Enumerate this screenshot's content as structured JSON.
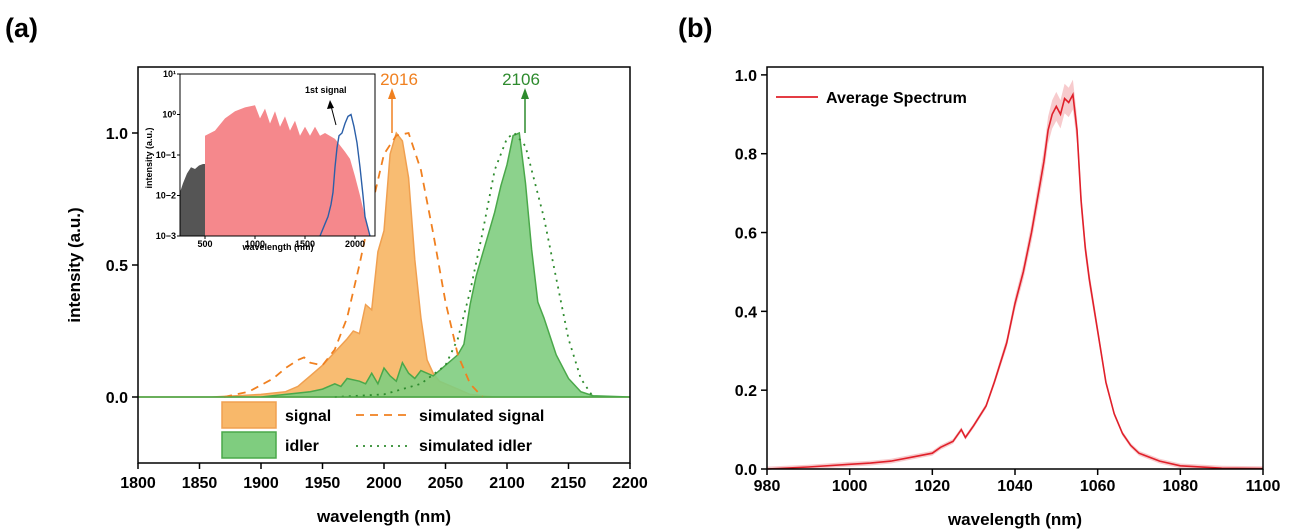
{
  "chart_data": [
    {
      "panel": "(a)",
      "type": "area",
      "xlabel": "wavelength (nm)",
      "ylabel": "intensity (a.u.)",
      "xlim": [
        1800,
        2200
      ],
      "ylim": [
        -0.25,
        1.25
      ],
      "xticks": [
        "1800",
        "1850",
        "1900",
        "1950",
        "2000",
        "2050",
        "2100",
        "2150",
        "2200"
      ],
      "yticks": [
        "0.0",
        "0.5",
        "1.0"
      ],
      "legend_position": "bottom",
      "legend": [
        "signal",
        "simulated signal",
        "idler",
        "simulated idler"
      ],
      "annotations": [
        {
          "text": "2016",
          "x": 2016,
          "color": "#f08020"
        },
        {
          "text": "2106",
          "x": 2106,
          "color": "#2e8b2e"
        }
      ],
      "series": [
        {
          "name": "signal",
          "style": "filled-area",
          "color": "#f8b86a",
          "x": [
            1800,
            1860,
            1880,
            1900,
            1920,
            1930,
            1940,
            1950,
            1960,
            1970,
            1975,
            1980,
            1985,
            1990,
            1995,
            2000,
            2005,
            2010,
            2015,
            2020,
            2025,
            2030,
            2035,
            2040,
            2045,
            2050,
            2055,
            2060,
            2070,
            2080,
            2090,
            2100,
            2110,
            2120,
            2200
          ],
          "y": [
            0,
            0,
            0.005,
            0.01,
            0.02,
            0.04,
            0.08,
            0.12,
            0.17,
            0.22,
            0.25,
            0.24,
            0.35,
            0.33,
            0.55,
            0.63,
            0.92,
            1.0,
            0.97,
            0.83,
            0.52,
            0.3,
            0.14,
            0.09,
            0.06,
            0.05,
            0.04,
            0.03,
            0.01,
            0.005,
            0,
            0,
            0,
            0,
            0
          ]
        },
        {
          "name": "idler",
          "style": "filled-area",
          "color": "#7fcd7f",
          "x": [
            1800,
            1900,
            1920,
            1940,
            1950,
            1960,
            1965,
            1970,
            1980,
            1985,
            1990,
            1995,
            2000,
            2005,
            2010,
            2015,
            2020,
            2025,
            2030,
            2040,
            2050,
            2060,
            2065,
            2070,
            2075,
            2080,
            2085,
            2090,
            2095,
            2100,
            2105,
            2110,
            2115,
            2120,
            2125,
            2130,
            2140,
            2150,
            2160,
            2170,
            2200
          ],
          "y": [
            0,
            0,
            0.01,
            0.02,
            0.03,
            0.05,
            0.04,
            0.07,
            0.06,
            0.05,
            0.09,
            0.05,
            0.11,
            0.08,
            0.06,
            0.13,
            0.09,
            0.07,
            0.1,
            0.08,
            0.12,
            0.16,
            0.2,
            0.35,
            0.46,
            0.54,
            0.62,
            0.7,
            0.8,
            0.88,
            0.99,
            1.0,
            0.81,
            0.56,
            0.36,
            0.3,
            0.16,
            0.07,
            0.02,
            0.005,
            0
          ]
        },
        {
          "name": "simulated signal",
          "style": "dashed",
          "color": "#f08020",
          "x": [
            1870,
            1890,
            1910,
            1920,
            1930,
            1935,
            1940,
            1950,
            1960,
            1970,
            1980,
            1990,
            2000,
            2010,
            2020,
            2030,
            2040,
            2050,
            2060,
            2070,
            2080
          ],
          "y": [
            0,
            0.02,
            0.07,
            0.11,
            0.14,
            0.15,
            0.13,
            0.12,
            0.18,
            0.3,
            0.5,
            0.72,
            0.92,
            0.99,
            1.0,
            0.86,
            0.62,
            0.36,
            0.16,
            0.05,
            0
          ]
        },
        {
          "name": "simulated idler",
          "style": "dotted",
          "color": "#2e8b2e",
          "x": [
            1960,
            2000,
            2030,
            2050,
            2060,
            2070,
            2080,
            2090,
            2100,
            2106,
            2115,
            2130,
            2140,
            2150,
            2160,
            2170
          ],
          "y": [
            0,
            0.01,
            0.05,
            0.12,
            0.22,
            0.4,
            0.62,
            0.86,
            0.98,
            1.0,
            0.95,
            0.68,
            0.45,
            0.22,
            0.07,
            0
          ]
        }
      ],
      "inset": {
        "type": "area",
        "xlabel": "wavelength (nm)",
        "ylabel": "intensity (a.u.)",
        "scale": "log",
        "xlim": [
          250,
          2200
        ],
        "ylim": [
          0.001,
          10
        ],
        "xticks": [
          "500",
          "1000",
          "1500",
          "2000"
        ],
        "yticks": [
          "10−3",
          "10−2",
          "10−1",
          "10⁰",
          "10¹"
        ],
        "annotation": "1st signal",
        "series": [
          {
            "name": "gray",
            "style": "filled-area",
            "color": "#555555",
            "x": [
              250,
              280,
              320,
              360,
              400,
              440,
              480,
              500
            ],
            "y": [
              0.012,
              0.02,
              0.035,
              0.05,
              0.045,
              0.055,
              0.06,
              0.06
            ]
          },
          {
            "name": "pink",
            "style": "filled-area",
            "color": "#f5888c",
            "x": [
              500,
              600,
              700,
              800,
              900,
              1000,
              1050,
              1100,
              1150,
              1200,
              1250,
              1300,
              1350,
              1400,
              1450,
              1500,
              1550,
              1600,
              1650,
              1700,
              1800,
              1900,
              1950,
              2000,
              2050,
              2100,
              2150
            ],
            "y": [
              0.3,
              0.4,
              0.8,
              1.2,
              1.5,
              1.7,
              0.8,
              1.4,
              0.6,
              1.2,
              0.5,
              0.9,
              0.4,
              0.7,
              0.3,
              0.5,
              0.3,
              0.5,
              0.3,
              0.35,
              0.25,
              0.12,
              0.08,
              0.03,
              0.01,
              0.003,
              0.001
            ]
          },
          {
            "name": "1st signal",
            "style": "line",
            "color": "#2b5fa8",
            "x": [
              1650,
              1700,
              1730,
              1760,
              1780,
              1800,
              1820,
              1840,
              1870,
              1900,
              1930,
              1960,
              1990,
              2020,
              2050,
              2080,
              2100,
              2150
            ],
            "y": [
              0.001,
              0.002,
              0.003,
              0.006,
              0.012,
              0.05,
              0.15,
              0.3,
              0.35,
              0.6,
              0.9,
              1.0,
              0.5,
              0.2,
              0.05,
              0.01,
              0.003,
              0.001
            ]
          }
        ]
      }
    },
    {
      "panel": "(b)",
      "type": "line",
      "xlabel": "wavelength (nm)",
      "ylabel": "",
      "xlim": [
        980,
        1100
      ],
      "ylim": [
        0,
        1.02
      ],
      "xticks": [
        "980",
        "1000",
        "1020",
        "1040",
        "1060",
        "1080",
        "1100"
      ],
      "yticks": [
        "0.0",
        "0.2",
        "0.4",
        "0.6",
        "0.8",
        "1.0"
      ],
      "legend_position": "top-left",
      "legend": [
        "Average Spectrum"
      ],
      "series": [
        {
          "name": "Average Spectrum",
          "style": "line-with-band",
          "color": "#e0202a",
          "x": [
            980,
            990,
            1000,
            1005,
            1010,
            1015,
            1020,
            1022,
            1025,
            1027,
            1028,
            1030,
            1033,
            1035,
            1038,
            1040,
            1042,
            1044,
            1046,
            1047,
            1048,
            1049,
            1050,
            1051,
            1052,
            1053,
            1054,
            1055,
            1056,
            1057,
            1058,
            1060,
            1062,
            1064,
            1066,
            1068,
            1070,
            1075,
            1080,
            1090,
            1100
          ],
          "y": [
            0.0,
            0.005,
            0.012,
            0.015,
            0.02,
            0.03,
            0.04,
            0.055,
            0.07,
            0.1,
            0.08,
            0.11,
            0.16,
            0.22,
            0.32,
            0.42,
            0.5,
            0.6,
            0.72,
            0.78,
            0.86,
            0.9,
            0.92,
            0.9,
            0.94,
            0.93,
            0.95,
            0.86,
            0.68,
            0.56,
            0.48,
            0.35,
            0.22,
            0.14,
            0.09,
            0.06,
            0.04,
            0.02,
            0.008,
            0.002,
            0.001
          ]
        }
      ]
    }
  ]
}
